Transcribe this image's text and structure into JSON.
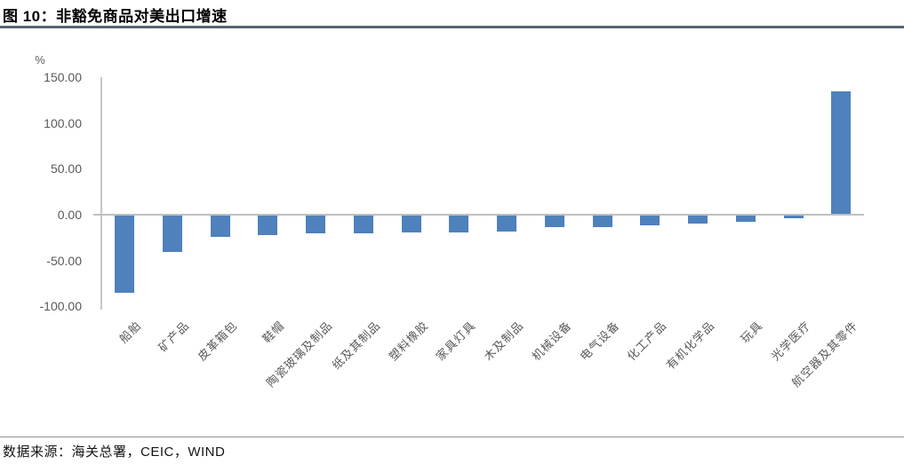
{
  "figure": {
    "title": "图 10：非豁免商品对美出口增速",
    "unit_label": "%",
    "source_note": "数据来源：海关总署，CEIC，WIND"
  },
  "chart_data": {
    "type": "bar",
    "title": "非豁免商品对美出口增速",
    "xlabel": "",
    "ylabel": "%",
    "categories": [
      "船舶",
      "矿产品",
      "皮革箱包",
      "鞋帽",
      "陶瓷玻璃及制品",
      "纸及其制品",
      "塑料橡胶",
      "家具灯具",
      "木及制品",
      "机械设备",
      "电气设备",
      "化工产品",
      "有机化学品",
      "玩具",
      "光学医疗",
      "航空器及其零件"
    ],
    "values": [
      -84,
      -40,
      -23,
      -21,
      -19.5,
      -19,
      -18.5,
      -18,
      -17.5,
      -13,
      -13,
      -11,
      -9,
      -7,
      -2.5,
      134
    ],
    "ylim": [
      -100,
      150
    ],
    "yticks": [
      150,
      100,
      50,
      0,
      -50,
      -100
    ],
    "ytick_labels": [
      "150.00",
      "100.00",
      "50.00",
      "0.00",
      "-50.00",
      "-100.00"
    ],
    "bar_color": "#4f81bd",
    "grid": false,
    "legend_position": "none"
  }
}
